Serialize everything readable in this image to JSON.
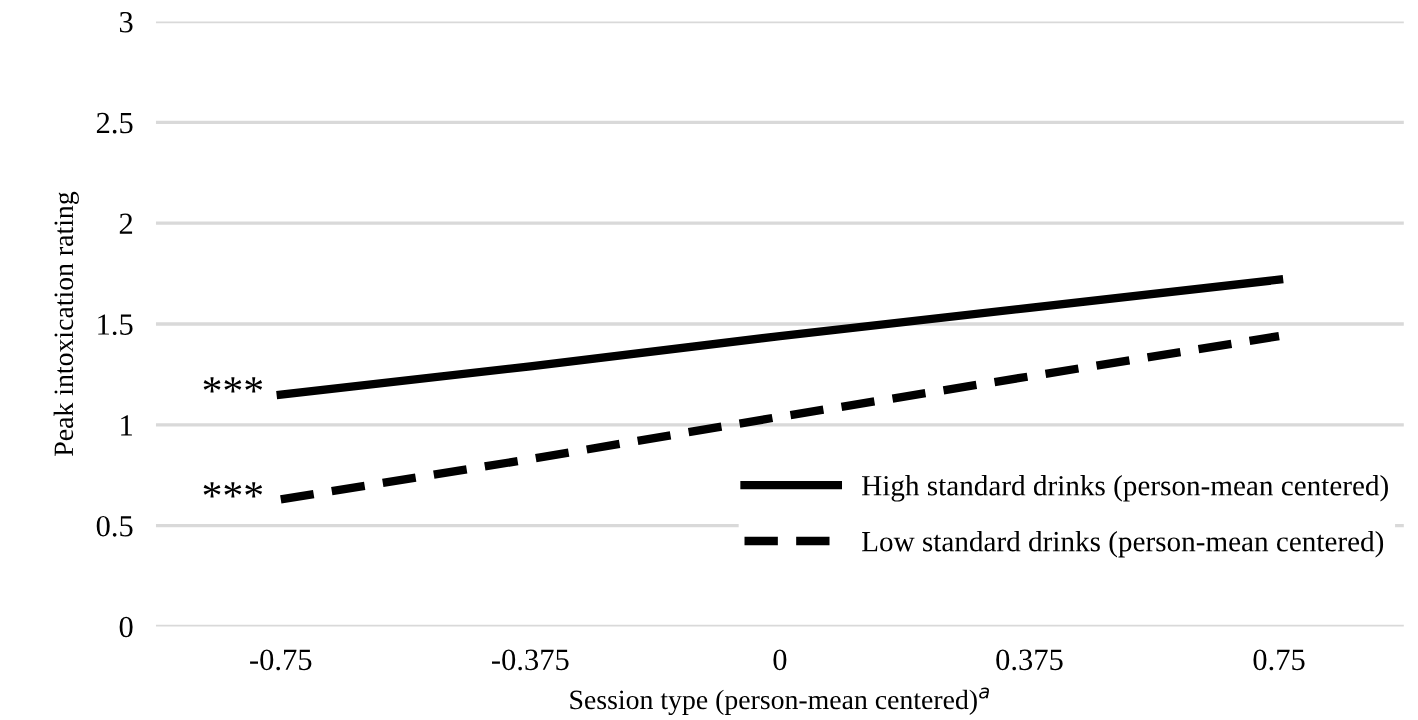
{
  "chart_data": {
    "type": "line",
    "xlabel": "Session type (person-mean centered)$^{a}$",
    "ylabel": "Peak intoxication rating",
    "categories": [
      "-0.75",
      "-0.375",
      "0",
      "0.375",
      "0.75"
    ],
    "series": [
      {
        "name": "High standard drinks (person-mean centered)",
        "color": "#000000",
        "line_style": "solid",
        "values": [
          1.15,
          1.29,
          1.44,
          1.58,
          1.72
        ]
      },
      {
        "name": "Low standard drinks (person-mean centered)",
        "color": "#000000",
        "line_style": "dashed",
        "values": [
          0.63,
          0.83,
          1.04,
          1.24,
          1.44
        ]
      }
    ],
    "ylim": [
      0,
      3
    ],
    "yticks": [
      0,
      0.5,
      1,
      1.5,
      2,
      2.5,
      3
    ],
    "grid": "y",
    "legend": "bottom right",
    "marker": "none",
    "annotations": [
      {
        "text": "***",
        "x": "-0.75",
        "y": 1.15
      },
      {
        "text": "***",
        "x": "-0.75",
        "y": 0.63
      }
    ]
  }
}
